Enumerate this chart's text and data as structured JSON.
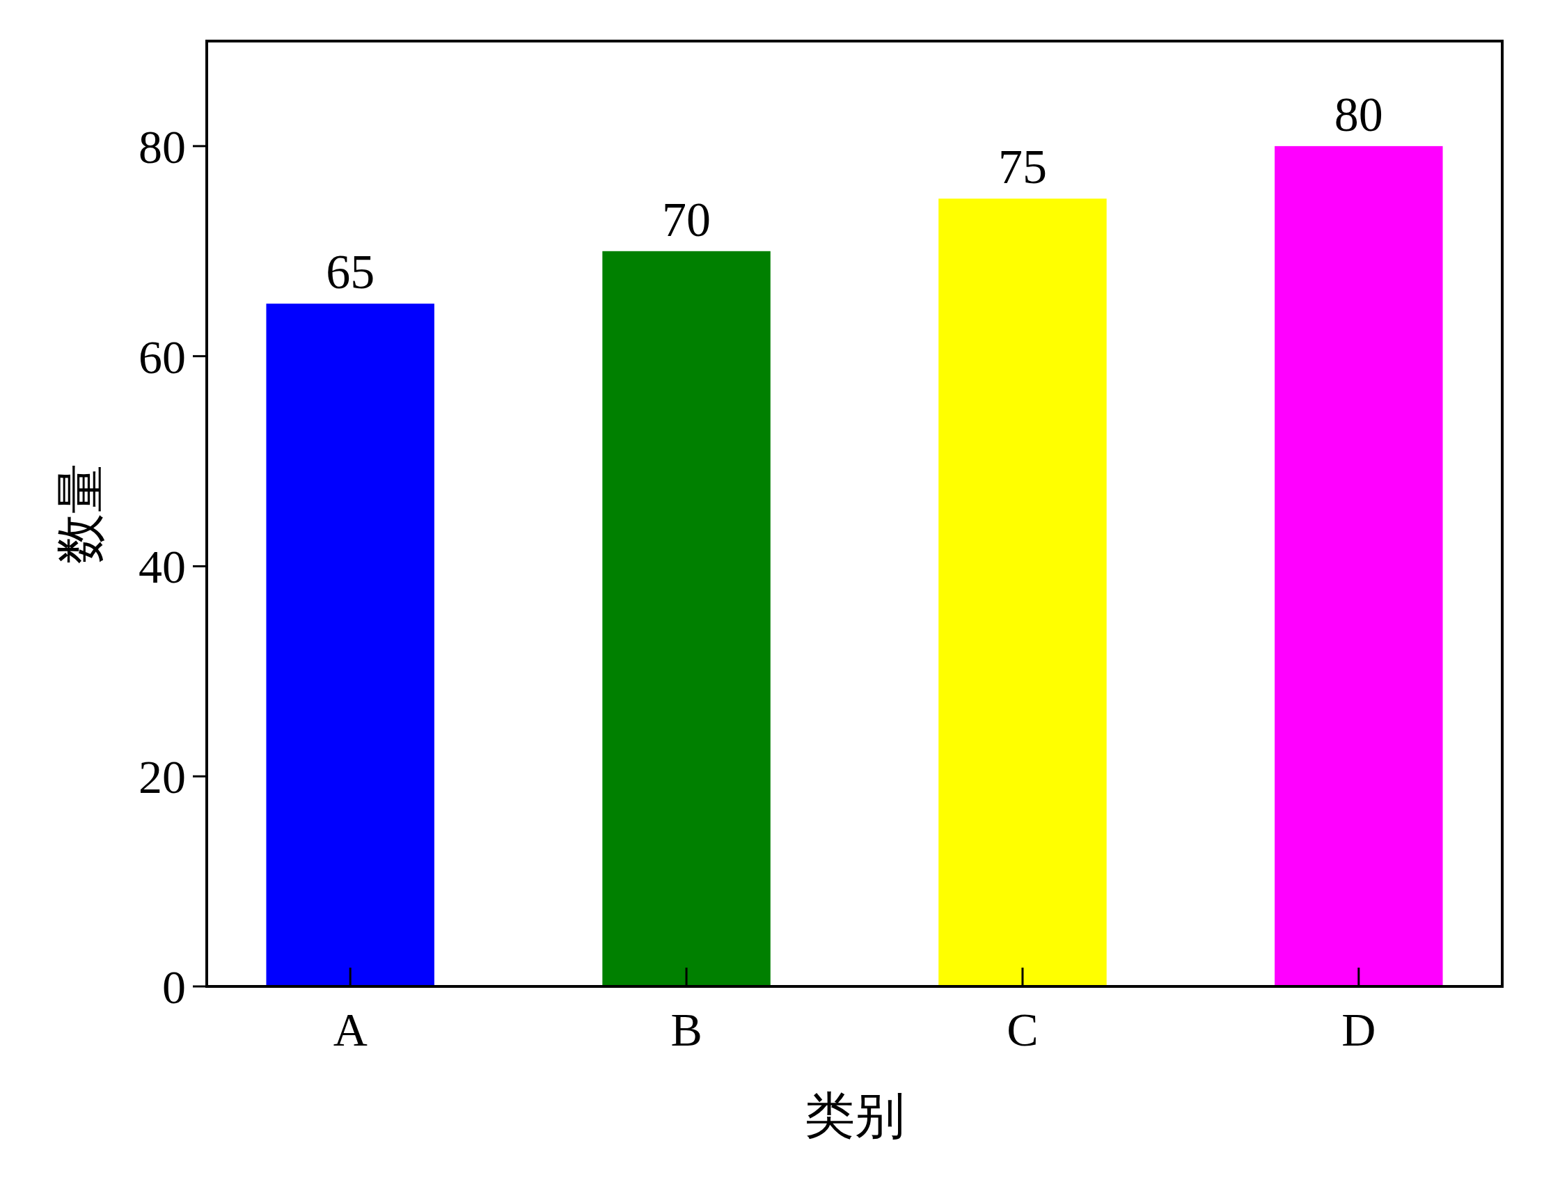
{
  "chart_data": {
    "type": "bar",
    "xlabel": "类别",
    "ylabel": "数量",
    "categories": [
      "A",
      "B",
      "C",
      "D"
    ],
    "values": [
      65,
      70,
      75,
      80
    ],
    "colors": [
      "#0000ff",
      "#008000",
      "#ffff00",
      "#ff00ff"
    ],
    "ylim": [
      0,
      90
    ],
    "yticks": [
      0,
      20,
      40,
      60,
      80
    ],
    "data_labels": true,
    "grid": false
  }
}
